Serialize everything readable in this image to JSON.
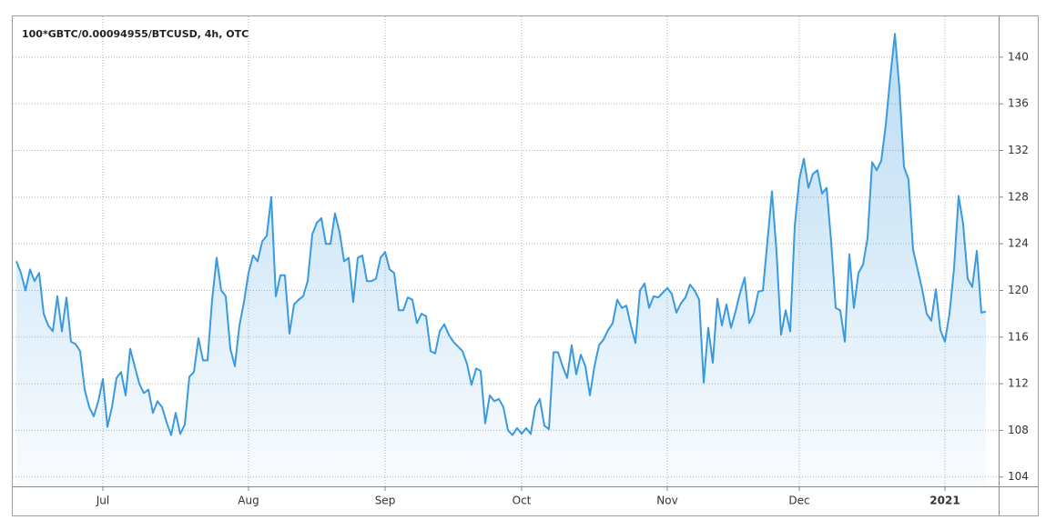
{
  "chart_data": {
    "type": "area",
    "title": "100*GBTC/0.00094955/BTCUSD, 4h, OTC",
    "color": "#3a9ae0",
    "grid": true,
    "categories": [
      null,
      null,
      null,
      null,
      null,
      null,
      null,
      null,
      null,
      null,
      null,
      null,
      null,
      null,
      null,
      null,
      null,
      null,
      null,
      "Jul",
      null,
      null,
      null,
      null,
      null,
      null,
      null,
      null,
      null,
      null,
      null,
      null,
      null,
      null,
      null,
      null,
      null,
      null,
      null,
      null,
      null,
      null,
      null,
      null,
      null,
      null,
      null,
      null,
      null,
      null,
      null,
      "Aug",
      null,
      null,
      null,
      null,
      null,
      null,
      null,
      null,
      null,
      null,
      null,
      null,
      null,
      null,
      null,
      null,
      null,
      null,
      null,
      null,
      null,
      null,
      null,
      null,
      null,
      null,
      null,
      null,
      null,
      "Sep",
      null,
      null,
      null,
      null,
      null,
      null,
      null,
      null,
      null,
      null,
      null,
      null,
      null,
      null,
      null,
      null,
      null,
      null,
      null,
      null,
      null,
      null,
      null,
      null,
      null,
      null,
      null,
      null,
      null,
      "Oct",
      null,
      null,
      null,
      null,
      null,
      null,
      null,
      null,
      null,
      null,
      null,
      null,
      null,
      null,
      null,
      null,
      null,
      null,
      null,
      null,
      null,
      null,
      null,
      null,
      null,
      null,
      null,
      null,
      null,
      null,
      null,
      "Nov",
      null,
      null,
      null,
      null,
      null,
      null,
      null,
      null,
      null,
      null,
      null,
      null,
      null,
      null,
      null,
      null,
      null,
      null,
      null,
      null,
      null,
      null,
      null,
      null,
      null,
      null,
      null,
      null,
      "Dec",
      null,
      null,
      null,
      null,
      null,
      null,
      null,
      null,
      null,
      null,
      null,
      null,
      null,
      null,
      null,
      null,
      null,
      null,
      null,
      null,
      null,
      null,
      null,
      null,
      null,
      null,
      null,
      null,
      null,
      null,
      null,
      "2021",
      null,
      null,
      null,
      null,
      null,
      null,
      null,
      null,
      null
    ],
    "values": [
      122.5,
      121.5,
      120,
      121.8,
      120.8,
      121.5,
      118,
      117,
      116.5,
      119.5,
      116.5,
      119.4,
      115.6,
      115.4,
      114.8,
      111.5,
      110,
      109.2,
      110.5,
      112.4,
      108.3,
      110,
      112.5,
      113,
      111,
      115,
      113.5,
      112,
      111.2,
      111.5,
      109.5,
      110.5,
      110,
      108.7,
      107.6,
      109.5,
      107.7,
      108.5,
      112.6,
      113,
      115.9,
      114,
      114,
      119.2,
      122.8,
      120,
      119.5,
      115,
      113.5,
      117,
      119,
      121.5,
      123,
      122.5,
      124.2,
      124.7,
      128,
      119.5,
      121.3,
      121.3,
      116.3,
      118.8,
      119.2,
      119.5,
      120.8,
      124.8,
      125.8,
      126.2,
      124,
      124,
      126.6,
      125,
      122.5,
      122.8,
      119,
      122.8,
      123,
      120.8,
      120.8,
      121,
      122.8,
      123.3,
      121.8,
      121.5,
      118.3,
      118.3,
      119.4,
      119.2,
      117.2,
      118,
      117.8,
      114.8,
      114.6,
      116.5,
      117.1,
      116.2,
      115.6,
      115.2,
      114.8,
      113.7,
      111.9,
      113.3,
      113.1,
      108.6,
      111,
      110.5,
      110.7,
      110,
      108,
      107.6,
      108.2,
      107.7,
      108.2,
      107.7,
      110,
      110.7,
      108.4,
      108.1,
      114.7,
      114.7,
      113.5,
      112.5,
      115.3,
      112.8,
      114.5,
      113.5,
      111,
      113.5,
      115.3,
      115.8,
      116.6,
      117.2,
      119.2,
      118.5,
      118.7,
      117,
      115.5,
      120,
      120.6,
      118.5,
      119.5,
      119.4,
      119.8,
      120.2,
      119.7,
      118.1,
      118.9,
      119.4,
      120.5,
      120,
      119.2,
      112.1,
      116.8,
      113.8,
      119.3,
      117,
      118.8,
      116.8,
      118.2,
      119.8,
      121.1,
      117.2,
      118,
      119.9,
      120,
      124.2,
      128.5,
      123.3,
      116.2,
      118.3,
      116.5,
      125.5,
      129.5,
      131.3,
      128.8,
      130,
      130.3,
      128.3,
      128.8,
      124.2,
      118.5,
      118.3,
      115.6,
      123.1,
      118.5,
      121.5,
      122.2,
      124.5,
      131,
      130.3,
      131.1,
      134.2,
      138.3,
      142,
      137.3,
      130.6,
      129.5,
      123.5,
      121.8,
      120.1,
      118,
      117.4,
      120.1,
      116.6,
      115.6,
      118,
      121.9,
      128.1,
      125.7,
      121,
      120.3,
      123.4,
      118.1,
      118.2
    ],
    "ylim": [
      103.2,
      143.5
    ],
    "yticks": [
      104,
      108,
      112,
      116,
      120,
      124,
      128,
      132,
      136,
      140
    ]
  }
}
